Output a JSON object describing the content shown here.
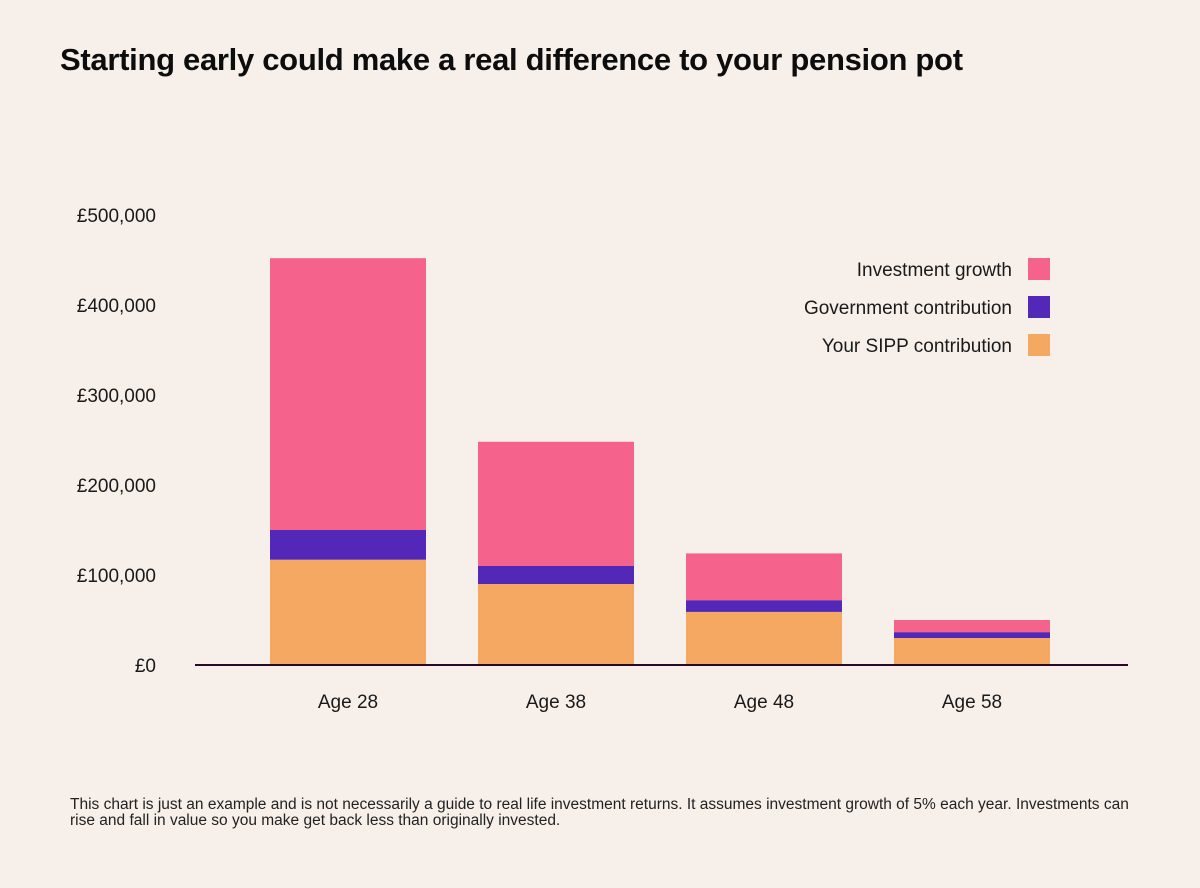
{
  "title": "Starting early could make a real difference to your pension pot",
  "footnote": "This chart is just an example and is not necessarily a guide to real life investment returns. It assumes investment growth of 5% each year. Investments can rise and fall in value so you make get back less than originally invested.",
  "colors": {
    "background": "#f7efe9",
    "investment_growth": "#f5638c",
    "government_contribution": "#5327b8",
    "sipp_contribution": "#f5a862",
    "axis": "#2a0a28"
  },
  "chart_data": {
    "type": "bar",
    "stacked": true,
    "categories": [
      "Age 28",
      "Age 38",
      "Age 48",
      "Age 58"
    ],
    "series": [
      {
        "name": "Your SIPP contribution",
        "color": "#f5a862",
        "values": [
          117000,
          90000,
          59000,
          30000
        ]
      },
      {
        "name": "Government contribution",
        "color": "#5327b8",
        "values": [
          33000,
          20000,
          13000,
          6500
        ]
      },
      {
        "name": "Investment growth",
        "color": "#f5638c",
        "values": [
          302000,
          138000,
          52000,
          13500
        ]
      }
    ],
    "ylim": [
      0,
      500000
    ],
    "yticks": [
      {
        "value": 0,
        "label": "£0"
      },
      {
        "value": 100000,
        "label": "£100,000"
      },
      {
        "value": 200000,
        "label": "£200,000"
      },
      {
        "value": 300000,
        "label": "£300,000"
      },
      {
        "value": 400000,
        "label": "£400,000"
      },
      {
        "value": 500000,
        "label": "£500,000"
      }
    ],
    "legend": {
      "placement": "top-right",
      "order": [
        "Investment growth",
        "Government contribution",
        "Your SIPP contribution"
      ]
    },
    "grid": false
  }
}
